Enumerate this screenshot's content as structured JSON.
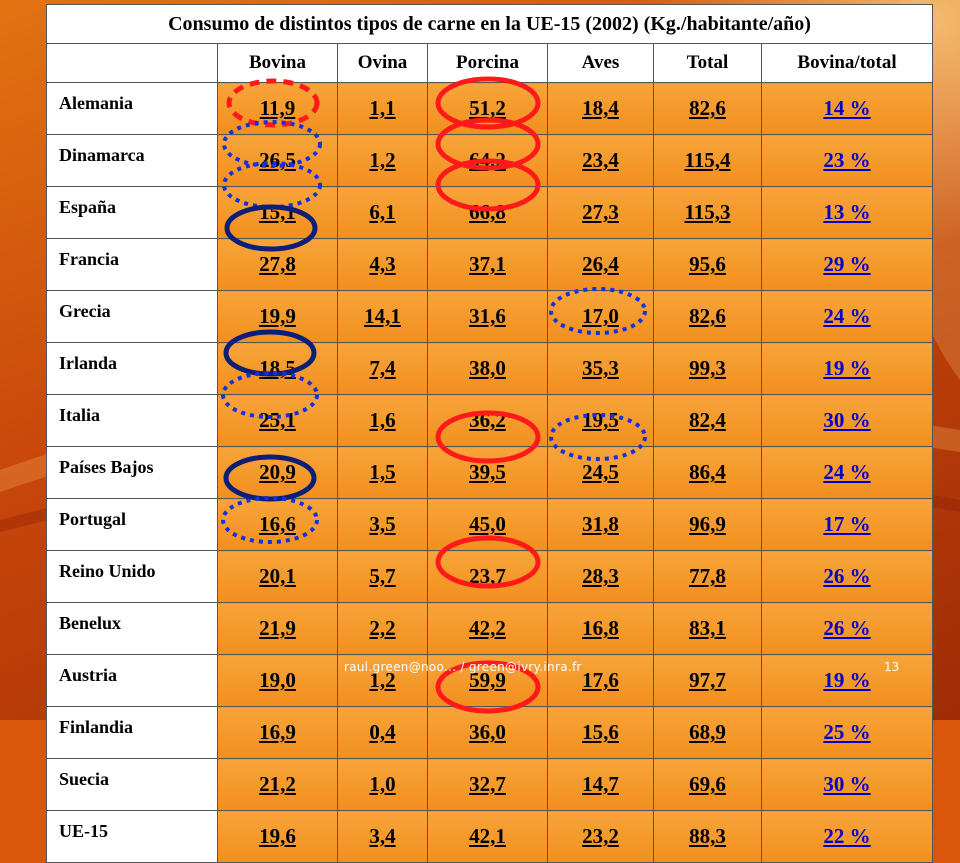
{
  "title": "Consumo de distintos tipos de carne en la UE-15 (2002) (Kg./habitante/año)",
  "columns": [
    "",
    "Bovina",
    "Ovina",
    "Porcina",
    "Aves",
    "Total",
    "Bovina/total"
  ],
  "rows": [
    {
      "country": "Alemania",
      "values": [
        "11,9",
        "1,1",
        "51,2",
        "18,4",
        "82,6",
        "14 %"
      ]
    },
    {
      "country": "Dinamarca",
      "values": [
        "26,5",
        "1,2",
        "64,2",
        "23,4",
        "115,4",
        "23 %"
      ]
    },
    {
      "country": "España",
      "values": [
        "15,1",
        "6,1",
        "66,8",
        "27,3",
        "115,3",
        "13 %"
      ]
    },
    {
      "country": "Francia",
      "values": [
        "27,8",
        "4,3",
        "37,1",
        "26,4",
        "95,6",
        "29 %"
      ]
    },
    {
      "country": "Grecia",
      "values": [
        "19,9",
        "14,1",
        "31,6",
        "17,0",
        "82,6",
        "24 %"
      ]
    },
    {
      "country": "Irlanda",
      "values": [
        "18,5",
        "7,4",
        "38,0",
        "35,3",
        "99,3",
        "19 %"
      ]
    },
    {
      "country": "Italia",
      "values": [
        "25,1",
        "1,6",
        "36,2",
        "19,5",
        "82,4",
        "30 %"
      ]
    },
    {
      "country": "Países Bajos",
      "values": [
        "20,9",
        "1,5",
        "39,5",
        "24,5",
        "86,4",
        "24 %"
      ]
    },
    {
      "country": "Portugal",
      "values": [
        "16,6",
        "3,5",
        "45,0",
        "31,8",
        "96,9",
        "17 %"
      ]
    },
    {
      "country": "Reino Unido",
      "values": [
        "20,1",
        "5,7",
        "23,7",
        "28,3",
        "77,8",
        "26 %"
      ]
    },
    {
      "country": "Benelux",
      "values": [
        "21,9",
        "2,2",
        "42,2",
        "16,8",
        "83,1",
        "26 %"
      ]
    },
    {
      "country": "Austria",
      "values": [
        "19,0",
        "1,2",
        "59,9",
        "17,6",
        "97,7",
        "19 %"
      ]
    },
    {
      "country": "Finlandia",
      "values": [
        "16,9",
        "0,4",
        "36,0",
        "15,6",
        "68,9",
        "25 %"
      ]
    },
    {
      "country": "Suecia",
      "values": [
        "21,2",
        "1,0",
        "32,7",
        "14,7",
        "69,6",
        "30 %"
      ]
    },
    {
      "country": "UE-15",
      "values": [
        "19,6",
        "3,4",
        "42,1",
        "23,2",
        "88,3",
        "22 %"
      ]
    }
  ],
  "footer": {
    "email": "raul.green@noo... / green@ivry.inra.fr",
    "page_number": "13"
  },
  "highlight_colors": {
    "red": "#ff1a1a",
    "navy": "#0a1e7a",
    "blue_dotted": "#1530e0"
  }
}
